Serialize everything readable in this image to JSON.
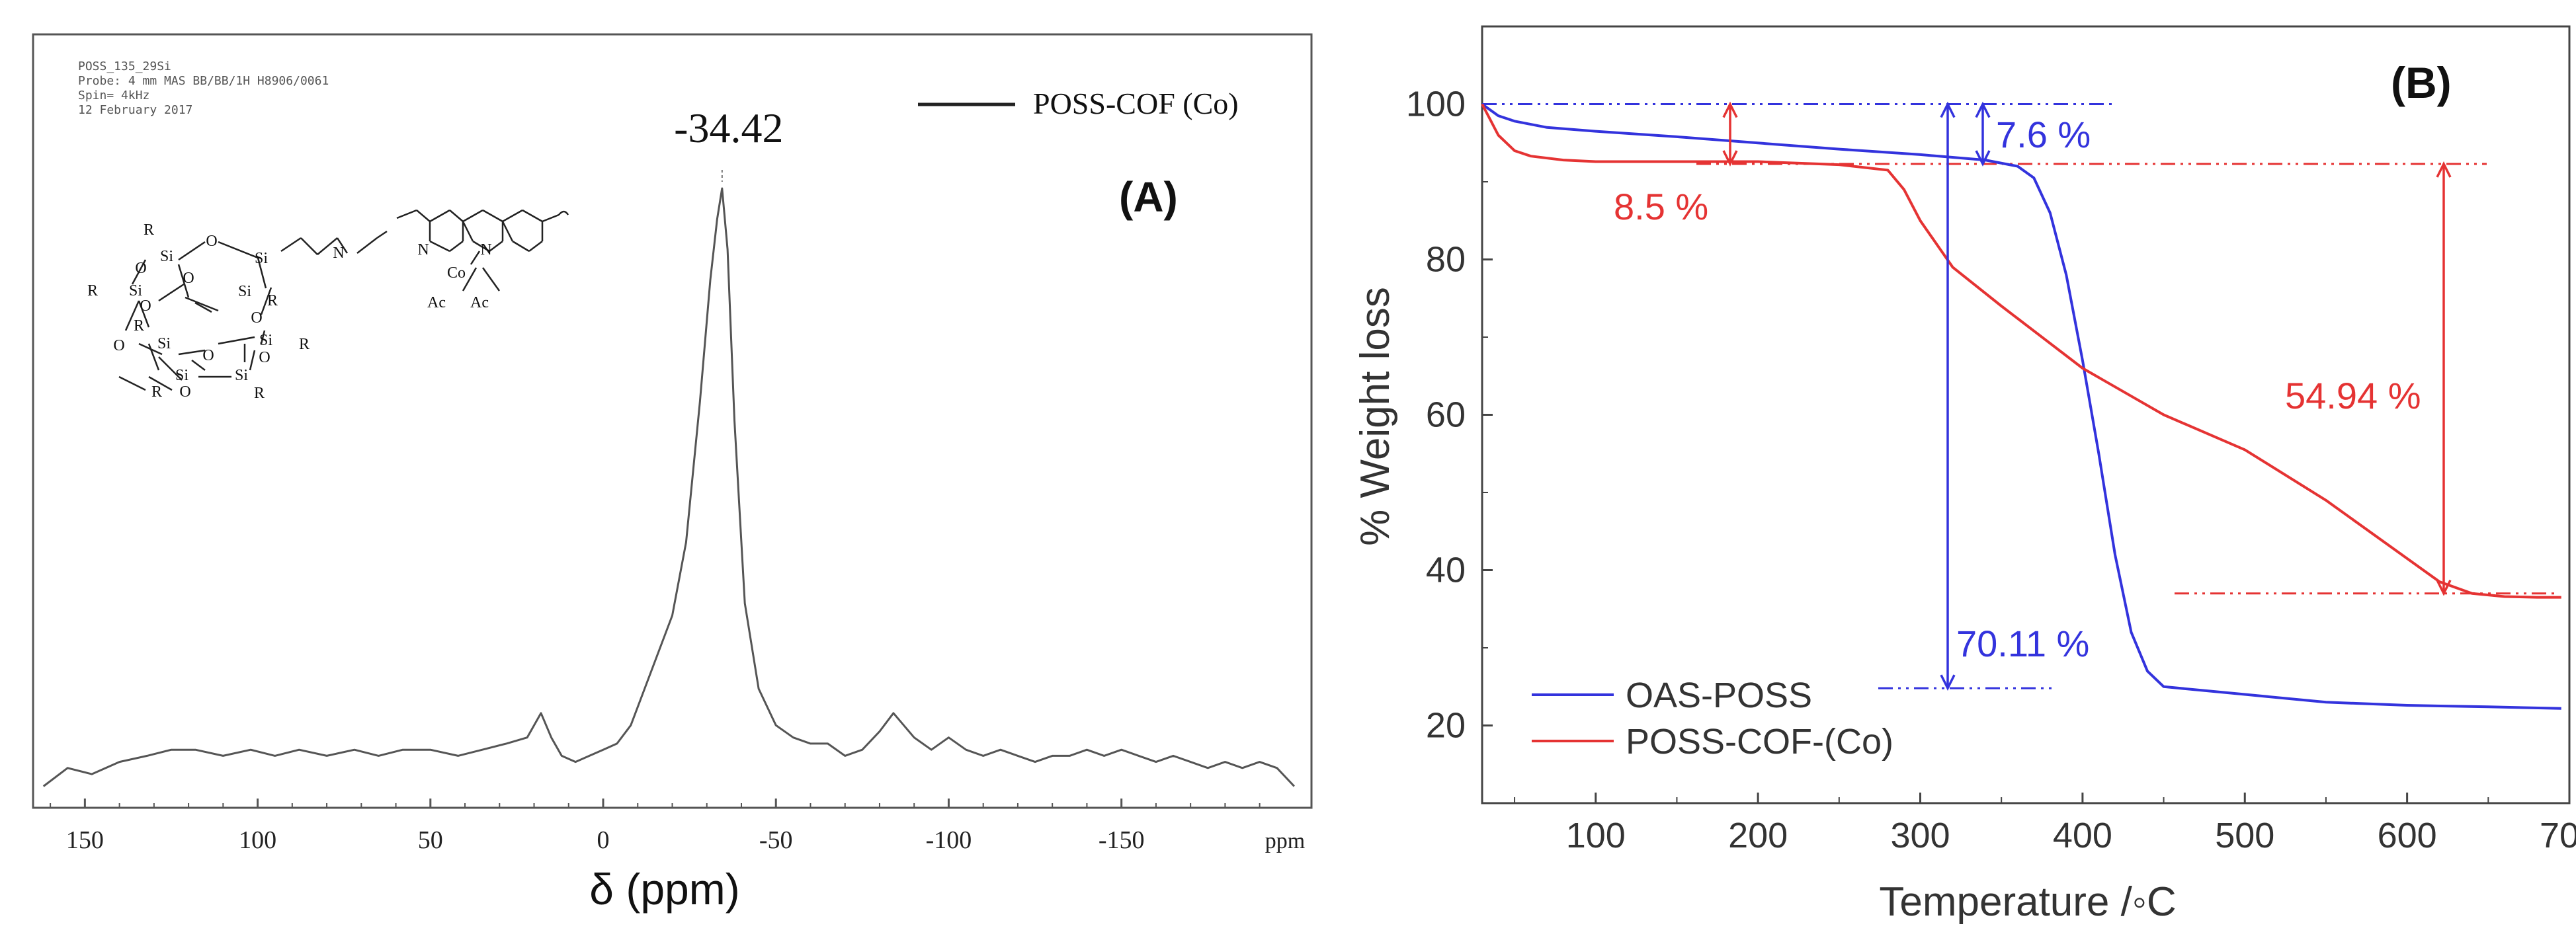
{
  "chart_data": [
    {
      "type": "line",
      "panel_label": "(A)",
      "xlabel": "δ (ppm)",
      "x_unit_label": "ppm",
      "xlim": [
        165,
        -205
      ],
      "x_reversed": true,
      "x_ticks": [
        150,
        100,
        50,
        0,
        -50,
        -100,
        -150
      ],
      "x_tick_labels": [
        "150",
        "100",
        "50",
        "0",
        "-50",
        "-100",
        "-150"
      ],
      "ylim": [
        0,
        1
      ],
      "y_axis_visible": false,
      "instrument_header": [
        "POSS_135_29Si",
        "Probe: 4 mm MAS BB/BB/1H H8906/0061",
        "Spin= 4kHz",
        "12 February 2017"
      ],
      "peak_label": "-34.42",
      "peak_position": -34.42,
      "legend": [
        "POSS-COF (Co)"
      ],
      "legend_position": "top-right",
      "series": [
        {
          "name": "POSS-COF (Co)",
          "color": "#555555",
          "x": [
            162,
            155,
            148,
            140,
            132,
            125,
            118,
            110,
            102,
            95,
            88,
            80,
            72,
            65,
            58,
            50,
            42,
            35,
            28,
            22,
            18,
            15,
            12,
            8,
            4,
            0,
            -4,
            -8,
            -12,
            -16,
            -20,
            -24,
            -28,
            -31,
            -33,
            -34.42,
            -36,
            -38,
            -41,
            -45,
            -50,
            -55,
            -60,
            -65,
            -70,
            -75,
            -80,
            -84,
            -87,
            -90,
            -95,
            -100,
            -105,
            -110,
            -115,
            -120,
            -125,
            -130,
            -135,
            -140,
            -145,
            -150,
            -155,
            -160,
            -165,
            -170,
            -175,
            -180,
            -185,
            -190,
            -195,
            -200
          ],
          "y": [
            0.02,
            0.05,
            0.04,
            0.06,
            0.07,
            0.08,
            0.08,
            0.07,
            0.08,
            0.07,
            0.08,
            0.07,
            0.08,
            0.07,
            0.08,
            0.08,
            0.07,
            0.08,
            0.09,
            0.1,
            0.14,
            0.1,
            0.07,
            0.06,
            0.07,
            0.08,
            0.09,
            0.12,
            0.18,
            0.24,
            0.3,
            0.42,
            0.65,
            0.85,
            0.95,
            1.0,
            0.9,
            0.62,
            0.32,
            0.18,
            0.12,
            0.1,
            0.09,
            0.09,
            0.07,
            0.08,
            0.11,
            0.14,
            0.12,
            0.1,
            0.08,
            0.1,
            0.08,
            0.07,
            0.08,
            0.07,
            0.06,
            0.07,
            0.07,
            0.08,
            0.07,
            0.08,
            0.07,
            0.06,
            0.07,
            0.06,
            0.05,
            0.06,
            0.05,
            0.06,
            0.05,
            0.02
          ]
        }
      ],
      "structure_labels": [
        "Si",
        "O",
        "R",
        "N",
        "Co",
        "Ac"
      ]
    },
    {
      "type": "line",
      "panel_label": "(B)",
      "title": "",
      "xlabel": "Temperature /◦C",
      "ylabel": "% Weight loss",
      "xlim": [
        30,
        700
      ],
      "ylim": [
        10,
        110
      ],
      "x_ticks": [
        100,
        200,
        300,
        400,
        500,
        600,
        700
      ],
      "x_tick_labels": [
        "100",
        "200",
        "300",
        "400",
        "500",
        "600",
        "700"
      ],
      "y_ticks": [
        20,
        40,
        60,
        80,
        100
      ],
      "y_tick_labels": [
        "20",
        "40",
        "60",
        "80",
        "100"
      ],
      "legend": [
        "OAS-POSS",
        "POSS-COF-(Co)"
      ],
      "legend_position": "bottom-left",
      "series": [
        {
          "name": "OAS-POSS",
          "color": "#3333dd",
          "x": [
            30,
            40,
            50,
            70,
            100,
            150,
            200,
            250,
            300,
            340,
            360,
            370,
            380,
            390,
            400,
            410,
            420,
            430,
            440,
            450,
            470,
            500,
            550,
            600,
            650,
            695
          ],
          "y": [
            100,
            98.5,
            97.8,
            97.0,
            96.5,
            95.8,
            95.0,
            94.2,
            93.5,
            92.8,
            92.0,
            90.5,
            86.0,
            78.0,
            67.0,
            55.0,
            42.0,
            32.0,
            27.0,
            25.0,
            24.6,
            24.0,
            23.0,
            22.6,
            22.4,
            22.2
          ]
        },
        {
          "name": "POSS-COF-(Co)",
          "color": "#e53333",
          "x": [
            30,
            35,
            40,
            50,
            60,
            80,
            100,
            150,
            200,
            250,
            280,
            290,
            300,
            320,
            350,
            400,
            450,
            500,
            550,
            600,
            620,
            640,
            660,
            680,
            695
          ],
          "y": [
            100,
            98.0,
            96.0,
            94.0,
            93.3,
            92.8,
            92.6,
            92.6,
            92.6,
            92.2,
            91.5,
            89.0,
            85.0,
            79.0,
            74.0,
            66.0,
            60.0,
            55.5,
            49.0,
            41.5,
            38.5,
            37.0,
            36.6,
            36.5,
            36.5
          ]
        }
      ],
      "annotations": [
        {
          "text": "7.6 %",
          "color": "#3333dd"
        },
        {
          "text": "8.5 %",
          "color": "#e53333"
        },
        {
          "text": "54.94 %",
          "color": "#e53333"
        },
        {
          "text": "70.11 %",
          "color": "#3333dd"
        }
      ]
    }
  ]
}
